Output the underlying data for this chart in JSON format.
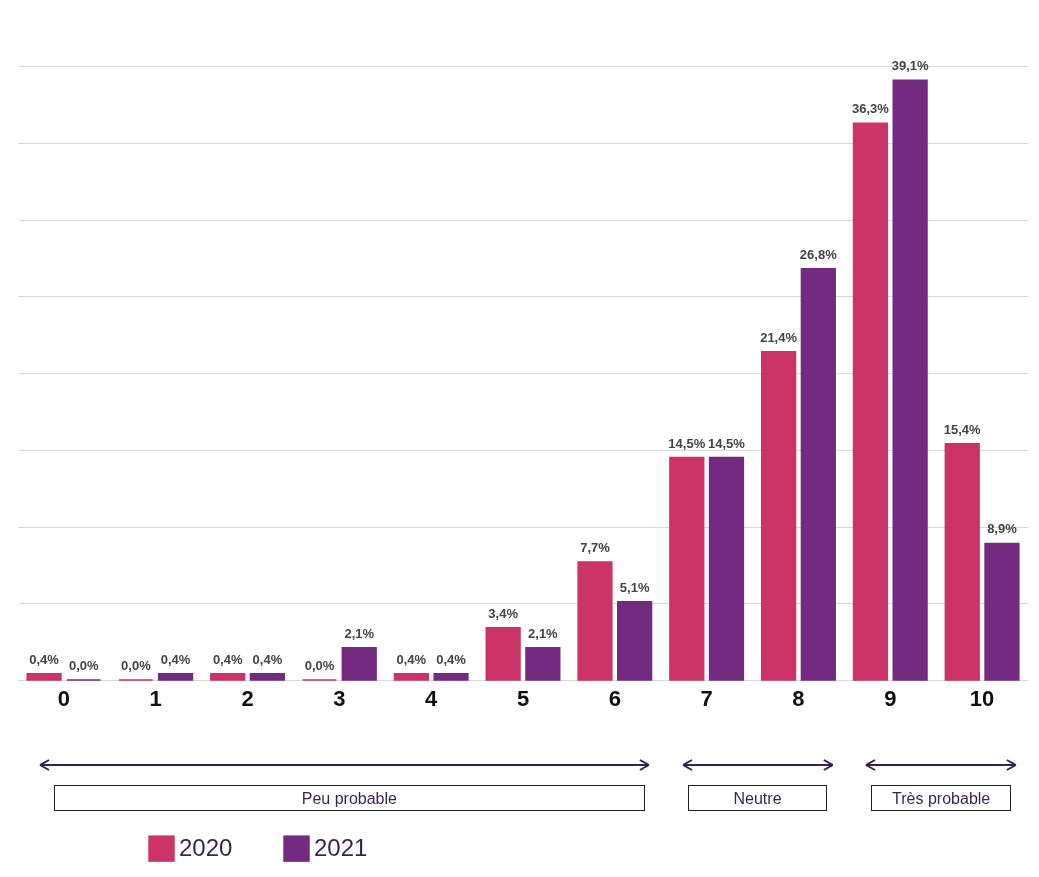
{
  "chart_data": {
    "type": "bar",
    "categories": [
      "0",
      "1",
      "2",
      "3",
      "4",
      "5",
      "6",
      "7",
      "8",
      "9",
      "10"
    ],
    "series": [
      {
        "name": "2020",
        "color": "#cc3366",
        "values": [
          0.4,
          0.0,
          0.4,
          0.0,
          0.4,
          3.4,
          7.7,
          14.5,
          21.4,
          36.3,
          15.4
        ],
        "value_labels": [
          "0,4%",
          "0,0%",
          "0,4%",
          "0,0%",
          "0,4%",
          "3,4%",
          "7,7%",
          "14,5%",
          "21,4%",
          "36,3%",
          "15,4%"
        ]
      },
      {
        "name": "2021",
        "color": "#732a80",
        "values": [
          0.0,
          0.4,
          0.4,
          2.1,
          0.4,
          2.1,
          5.1,
          14.5,
          26.8,
          39.1,
          8.9
        ],
        "value_labels": [
          "0,0%",
          "0,4%",
          "0,4%",
          "2,1%",
          "0,4%",
          "2,1%",
          "5,1%",
          "14,5%",
          "26,8%",
          "39,1%",
          "8,9%"
        ]
      }
    ],
    "ylim": [
      0,
      44
    ],
    "yticks": [
      {
        "value": 0,
        "label": null
      },
      {
        "value": 5,
        "label": null
      },
      {
        "value": 10,
        "label": null
      },
      {
        "value": 15,
        "label": null
      },
      {
        "value": 20,
        "label": null
      },
      {
        "value": 25,
        "label": null
      },
      {
        "value": 30,
        "label": null
      },
      {
        "value": 35,
        "label": null
      },
      {
        "value": 40,
        "label": null
      }
    ],
    "grid": "y",
    "tick_labels": "x",
    "legend": "bottom",
    "annotations": [
      "Peu probable",
      "Neutre",
      "Très probable"
    ]
  }
}
